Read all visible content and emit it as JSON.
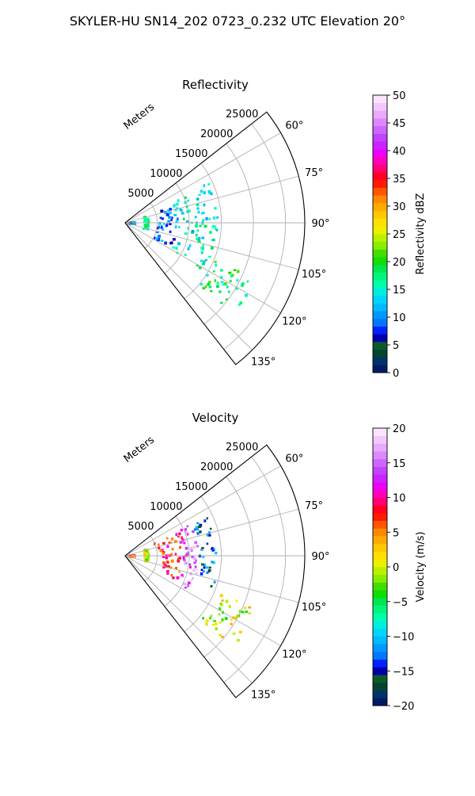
{
  "figure": {
    "suptitle": "SKYLER-HU  SN14_202  0723_0.232 UTC Elevation 20°"
  },
  "chart_data": [
    {
      "type": "polar-sector",
      "title": "Reflectivity",
      "radial_label": "Meters",
      "rlim": [
        0,
        28000
      ],
      "radial_ticks": [
        5000,
        10000,
        15000,
        20000,
        25000
      ],
      "radial_tick_labels": [
        "5000",
        "10000",
        "15000",
        "20000",
        "25000"
      ],
      "theta_range_deg": [
        52,
        142
      ],
      "theta_ticks_deg": [
        60,
        75,
        90,
        105,
        120,
        135
      ],
      "theta_tick_labels": [
        "60°",
        "75°",
        "90°",
        "105°",
        "120°",
        "135°"
      ],
      "grid": true,
      "colorbar": {
        "label": "Reflectivity dBZ",
        "range": [
          0,
          50
        ],
        "ticks": [
          0,
          5,
          10,
          15,
          20,
          25,
          30,
          35,
          40,
          45,
          50
        ],
        "tick_labels": [
          "0",
          "5",
          "10",
          "15",
          "20",
          "25",
          "30",
          "35",
          "40",
          "45",
          "50"
        ],
        "colors": [
          "#001a66",
          "#00336b",
          "#05452d",
          "#0c5a2a",
          "#0000aa",
          "#0022ff",
          "#0077ff",
          "#0099ff",
          "#00bbff",
          "#00d5ff",
          "#00eedd",
          "#00ffaa",
          "#00f57a",
          "#00e650",
          "#11dd00",
          "#44dd00",
          "#88ee00",
          "#bbf000",
          "#eeee00",
          "#ffe000",
          "#ffc800",
          "#ffaa00",
          "#ff8800",
          "#ff5500",
          "#ff1a00",
          "#ff0022",
          "#ff0077",
          "#ff00bb",
          "#ee00ff",
          "#cc22ff",
          "#c044ff",
          "#cc66ff",
          "#dd88ff",
          "#e8aaff",
          "#f2c8ff",
          "#fae4ff"
        ]
      },
      "echo_regions": [
        {
          "band": "near",
          "r_range": [
            0,
            1500
          ],
          "theta_range": [
            86,
            95
          ],
          "dominant_value": 8
        },
        {
          "band": "ring",
          "r_range": [
            3000,
            3600
          ],
          "theta_range": [
            72,
            108
          ],
          "dominant_value": 18
        },
        {
          "band": "scattered",
          "r_range": [
            5000,
            9000
          ],
          "theta_range": [
            70,
            120
          ],
          "dominant_value": 10
        },
        {
          "band": "main",
          "r_range": [
            8000,
            14500
          ],
          "theta_range": [
            64,
            122
          ],
          "dominant_value": 15
        },
        {
          "band": "outer",
          "r_range": [
            15000,
            22000
          ],
          "theta_range": [
            112,
            130
          ],
          "dominant_value": 18
        }
      ]
    },
    {
      "type": "polar-sector",
      "title": "Velocity",
      "radial_label": "Meters",
      "rlim": [
        0,
        28000
      ],
      "radial_ticks": [
        5000,
        10000,
        15000,
        20000,
        25000
      ],
      "radial_tick_labels": [
        "5000",
        "10000",
        "15000",
        "20000",
        "25000"
      ],
      "theta_range_deg": [
        52,
        142
      ],
      "theta_ticks_deg": [
        60,
        75,
        90,
        105,
        120,
        135
      ],
      "theta_tick_labels": [
        "60°",
        "75°",
        "90°",
        "105°",
        "120°",
        "135°"
      ],
      "grid": true,
      "colorbar": {
        "label": "Velocity (m/s)",
        "range": [
          -20,
          20
        ],
        "ticks": [
          -20,
          -15,
          -10,
          -5,
          0,
          5,
          10,
          15,
          20
        ],
        "tick_labels": [
          "−20",
          "−15",
          "−10",
          "−5",
          "0",
          "5",
          "10",
          "15",
          "20"
        ],
        "colors": [
          "#001a66",
          "#00336b",
          "#05452d",
          "#0c5a2a",
          "#0000aa",
          "#0022ff",
          "#0077ff",
          "#0099ff",
          "#00bbff",
          "#00d5ff",
          "#00eedd",
          "#00ffaa",
          "#00f57a",
          "#00e650",
          "#11dd00",
          "#44dd00",
          "#88ee00",
          "#bbf000",
          "#eeee00",
          "#ffe000",
          "#ffc800",
          "#ffaa00",
          "#ff8800",
          "#ff5500",
          "#ff1a00",
          "#ff0022",
          "#ff0077",
          "#ff00bb",
          "#ee00ff",
          "#cc22ff",
          "#c044ff",
          "#cc66ff",
          "#dd88ff",
          "#e8aaff",
          "#f2c8ff",
          "#fae4ff"
        ]
      },
      "echo_regions": [
        {
          "band": "near",
          "r_range": [
            0,
            1500
          ],
          "theta_range": [
            86,
            95
          ],
          "dominant_value": 5
        },
        {
          "band": "ring",
          "r_range": [
            3000,
            3600
          ],
          "theta_range": [
            72,
            108
          ],
          "dominant_value": 0
        },
        {
          "band": "inner",
          "r_range": [
            5000,
            9500
          ],
          "theta_range": [
            66,
            120
          ],
          "dominant_value": 8
        },
        {
          "band": "main",
          "r_range": [
            9000,
            11500
          ],
          "theta_range": [
            64,
            118
          ],
          "dominant_value": 15
        },
        {
          "band": "outer-main",
          "r_range": [
            11500,
            14500
          ],
          "theta_range": [
            64,
            110
          ],
          "dominant_value": -13
        },
        {
          "band": "outer",
          "r_range": [
            15000,
            22000
          ],
          "theta_range": [
            112,
            130
          ],
          "dominant_value": 0
        }
      ]
    }
  ]
}
